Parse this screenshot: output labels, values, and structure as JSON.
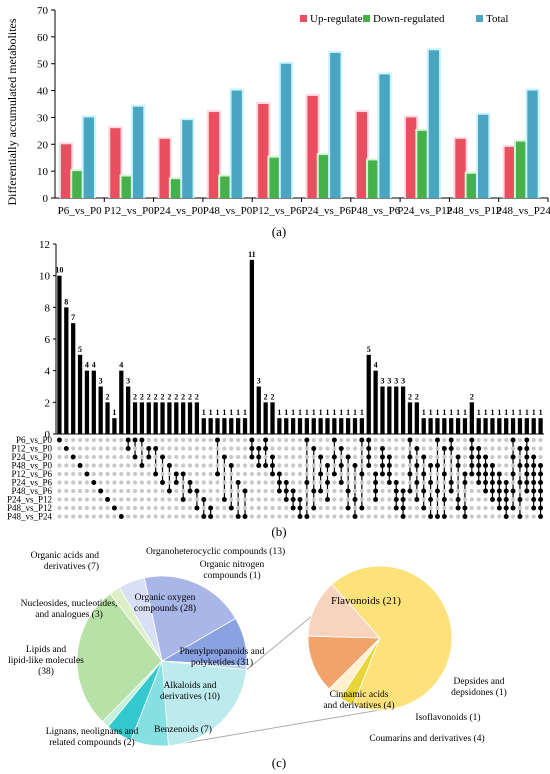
{
  "panel_labels": {
    "a": "(a)",
    "b": "(b)",
    "c": "(c)"
  },
  "colors": {
    "up": "#ea4f5f",
    "down": "#46b04a",
    "total": "#4aa6c0",
    "up_halo": "#ffd9e2",
    "down_halo": "#d6f5d6",
    "total_halo": "#ccf4ff",
    "upset_bar": "#000000",
    "dot_on": "#000000",
    "dot_off": "#c8c8c8",
    "pie_outline": "#ffffff",
    "callout_line": "#aaaaaa"
  },
  "chart_data": [
    {
      "id": "a",
      "type": "bar",
      "title": "",
      "xlabel": "",
      "ylabel": "Differentially accumulated metabolites",
      "ylim": [
        0,
        70
      ],
      "yticks": [
        0,
        10,
        20,
        30,
        40,
        50,
        60,
        70
      ],
      "grid": false,
      "legend_position": "top-right",
      "categories": [
        "P6_vs_P0",
        "P12_vs_P0",
        "P24_vs_P0",
        "P48_vs_P0",
        "P12_vs_P6",
        "P24_vs_P6",
        "P48_vs_P6",
        "P24_vs_P12",
        "P48_vs_P12",
        "P48_vs_P24"
      ],
      "series": [
        {
          "name": "Up-regulated",
          "values": [
            20,
            26,
            22,
            32,
            35,
            38,
            32,
            30,
            22,
            19
          ]
        },
        {
          "name": "Down-regulated",
          "values": [
            10,
            8,
            7,
            8,
            15,
            16,
            14,
            25,
            9,
            21
          ]
        },
        {
          "name": "Total",
          "values": [
            30,
            34,
            29,
            40,
            50,
            54,
            46,
            55,
            31,
            40
          ]
        }
      ]
    },
    {
      "id": "b",
      "type": "bar",
      "title": "",
      "xlabel": "",
      "ylabel": "",
      "ylim": [
        0,
        12
      ],
      "yticks": [
        0,
        2,
        4,
        6,
        8,
        10,
        12
      ],
      "grid": false,
      "sets": [
        "P6_vs_P0",
        "P12_vs_P0",
        "P24_vs_P0",
        "P48_vs_P0",
        "P12_vs_P6",
        "P24_vs_P6",
        "P48_vs_P6",
        "P24_vs_P12",
        "P48_vs_P12",
        "P48_vs_P24"
      ],
      "values": [
        10,
        8,
        7,
        5,
        4,
        4,
        3,
        2,
        1,
        4,
        3,
        2,
        2,
        2,
        2,
        2,
        2,
        2,
        2,
        2,
        2,
        1,
        1,
        1,
        1,
        1,
        1,
        1,
        11,
        3,
        2,
        2,
        1,
        1,
        1,
        1,
        1,
        1,
        1,
        1,
        1,
        1,
        1,
        1,
        1,
        5,
        4,
        3,
        3,
        3,
        3,
        2,
        2,
        1,
        1,
        1,
        1,
        1,
        1,
        1,
        2,
        1,
        1,
        1,
        1,
        1,
        1,
        1,
        1,
        1,
        1
      ],
      "data_labels": [
        "10",
        "8",
        "7",
        "5",
        "4",
        "4",
        "3",
        "2",
        "1",
        "4",
        "3",
        "2",
        "2",
        "2",
        "2",
        "2",
        "2",
        "2",
        "2",
        "2",
        "2",
        "1",
        "1",
        "1",
        "1",
        "1",
        "1",
        "1",
        "11",
        "3",
        "2",
        "2",
        "1",
        "1",
        "1",
        "1",
        "1",
        "1",
        "1",
        "1",
        "1",
        "1",
        "1",
        "1",
        "1",
        "5",
        "4",
        "3",
        "3",
        "3",
        "3",
        "2",
        "2",
        "1",
        "1",
        "1",
        "1",
        "1",
        "1",
        "1",
        "2",
        "1",
        "1",
        "1",
        "1",
        "1",
        "1",
        "1",
        "1",
        "1",
        "1"
      ],
      "memberships": [
        [
          0
        ],
        [
          1
        ],
        [
          2
        ],
        [
          3
        ],
        [
          4
        ],
        [
          5
        ],
        [
          6
        ],
        [
          7
        ],
        [
          8
        ],
        [
          9
        ],
        [
          0,
          1
        ],
        [
          0,
          2
        ],
        [
          0,
          3
        ],
        [
          1,
          2
        ],
        [
          1,
          4
        ],
        [
          2,
          5
        ],
        [
          3,
          6
        ],
        [
          4,
          5
        ],
        [
          4,
          7
        ],
        [
          5,
          6
        ],
        [
          6,
          8
        ],
        [
          7,
          9
        ],
        [
          8,
          9
        ],
        [
          0,
          4
        ],
        [
          2,
          7
        ],
        [
          3,
          8
        ],
        [
          5,
          9
        ],
        [
          6,
          9
        ],
        [
          0,
          1,
          2
        ],
        [
          1,
          2,
          3
        ],
        [
          0,
          1,
          3
        ],
        [
          2,
          3,
          4
        ],
        [
          4,
          5,
          6
        ],
        [
          5,
          6,
          7
        ],
        [
          6,
          7,
          8
        ],
        [
          7,
          8,
          9
        ],
        [
          0,
          5,
          9
        ],
        [
          1,
          6,
          8
        ],
        [
          2,
          4,
          6
        ],
        [
          3,
          5,
          7
        ],
        [
          0,
          2,
          4
        ],
        [
          1,
          3,
          5
        ],
        [
          2,
          6,
          8
        ],
        [
          3,
          7,
          9
        ],
        [
          0,
          4,
          8
        ],
        [
          0,
          1,
          2,
          3
        ],
        [
          4,
          5,
          6,
          7
        ],
        [
          1,
          2,
          3,
          4
        ],
        [
          2,
          3,
          4,
          5
        ],
        [
          5,
          6,
          7,
          8
        ],
        [
          6,
          7,
          8,
          9
        ],
        [
          0,
          2,
          4,
          6
        ],
        [
          1,
          3,
          5,
          7
        ],
        [
          2,
          4,
          6,
          8
        ],
        [
          3,
          5,
          7,
          9
        ],
        [
          0,
          3,
          6,
          9
        ],
        [
          1,
          4,
          7,
          9
        ],
        [
          0,
          1,
          5,
          6
        ],
        [
          2,
          3,
          7,
          8
        ],
        [
          4,
          5,
          8,
          9
        ],
        [
          0,
          1,
          2,
          3,
          4
        ],
        [
          1,
          2,
          3,
          4,
          5
        ],
        [
          2,
          3,
          4,
          5,
          6
        ],
        [
          3,
          4,
          5,
          6,
          7
        ],
        [
          4,
          5,
          6,
          7,
          8
        ],
        [
          5,
          6,
          7,
          8,
          9
        ],
        [
          0,
          2,
          4,
          6,
          8
        ],
        [
          1,
          3,
          5,
          7,
          9
        ],
        [
          0,
          1,
          2,
          3,
          4,
          5,
          6
        ],
        [
          2,
          3,
          4,
          5,
          6,
          7,
          8
        ],
        [
          3,
          4,
          5,
          6,
          7,
          8,
          9
        ]
      ]
    },
    {
      "id": "c1",
      "type": "pie",
      "title": "",
      "slices": [
        {
          "label": "Organic oxygen compounds (28)",
          "value": 28,
          "color": "#a9b6e8"
        },
        {
          "label": "Organoheterocyclic compounds (13)",
          "value": 13,
          "color": "#8aa2e2"
        },
        {
          "label": "Organic nitrogen compounds (1)",
          "value": 1,
          "color": "#b9d2ee"
        },
        {
          "label": "Phenylpropanoids and polyketides (31)",
          "value": 31,
          "color": "#bdeaec"
        },
        {
          "label": "Alkaloids and derivatives (10)",
          "value": 10,
          "color": "#86dfe0"
        },
        {
          "label": "Benzenoids (7)",
          "value": 7,
          "color": "#33c9cf"
        },
        {
          "label": "Lignans, neolignans and related compounds (2)",
          "value": 2,
          "color": "#c6f1d9"
        },
        {
          "label": "Lipids and lipid-like molecules (38)",
          "value": 38,
          "color": "#b7e1a7"
        },
        {
          "label": "Nucleosides, nucleotides, and analogues (3)",
          "value": 3,
          "color": "#dcefc8"
        },
        {
          "label": "Organic acids and derivatives (7)",
          "value": 7,
          "color": "#d9dff5"
        }
      ]
    },
    {
      "id": "c2",
      "type": "pie",
      "title": "",
      "slices": [
        {
          "label": "Flavonoids (21)",
          "value": 21,
          "color": "#fde27c"
        },
        {
          "label": "Depsides and depsidones (1)",
          "value": 1,
          "color": "#e8d53a"
        },
        {
          "label": "Isoflavonoids (1)",
          "value": 1,
          "color": "#fff1d0"
        },
        {
          "label": "Coumarins and derivatives (4)",
          "value": 4,
          "color": "#f2a36a"
        },
        {
          "label": "Cinnamic acids and derivatives (4)",
          "value": 4,
          "color": "#f8d4bd"
        }
      ]
    }
  ]
}
